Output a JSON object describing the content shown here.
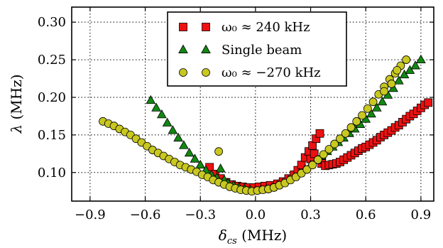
{
  "chart_data": {
    "type": "scatter",
    "xlabel": "δ_cs (MHz)",
    "ylabel": "λ (MHz)",
    "xlim": [
      -1.0,
      0.97
    ],
    "ylim": [
      0.062,
      0.32
    ],
    "x_ticks": [
      -0.9,
      -0.6,
      -0.3,
      0.0,
      0.3,
      0.6,
      0.9
    ],
    "x_tick_labels": [
      "−0.9",
      "−0.6",
      "−0.3",
      "0.0",
      "0.3",
      "0.6",
      "0.9"
    ],
    "y_ticks": [
      0.1,
      0.15,
      0.2,
      0.25,
      0.3
    ],
    "y_tick_labels": [
      "0.10",
      "0.15",
      "0.20",
      "0.25",
      "0.30"
    ],
    "grid": true,
    "legend_position": "top-center",
    "series": [
      {
        "name": "ω₀ ≈ 240 kHz",
        "marker": "square",
        "color": "#ee1111",
        "points": [
          [
            -0.25,
            0.107
          ],
          [
            -0.22,
            0.098
          ],
          [
            -0.19,
            0.092
          ],
          [
            -0.16,
            0.087
          ],
          [
            -0.13,
            0.084
          ],
          [
            -0.1,
            0.082
          ],
          [
            -0.07,
            0.081
          ],
          [
            -0.04,
            0.08
          ],
          [
            -0.01,
            0.08
          ],
          [
            0.02,
            0.081
          ],
          [
            0.05,
            0.082
          ],
          [
            0.08,
            0.083
          ],
          [
            0.12,
            0.085
          ],
          [
            0.15,
            0.088
          ],
          [
            0.18,
            0.092
          ],
          [
            0.21,
            0.097
          ],
          [
            0.23,
            0.103
          ],
          [
            0.25,
            0.11
          ],
          [
            0.27,
            0.12
          ],
          [
            0.29,
            0.128
          ],
          [
            0.31,
            0.136
          ],
          [
            0.33,
            0.145
          ],
          [
            0.35,
            0.152
          ],
          [
            0.3,
            0.118
          ],
          [
            0.32,
            0.125
          ],
          [
            0.36,
            0.112
          ],
          [
            0.38,
            0.109
          ],
          [
            0.4,
            0.11
          ],
          [
            0.42,
            0.111
          ],
          [
            0.44,
            0.112
          ],
          [
            0.46,
            0.114
          ],
          [
            0.48,
            0.117
          ],
          [
            0.5,
            0.12
          ],
          [
            0.52,
            0.123
          ],
          [
            0.54,
            0.126
          ],
          [
            0.56,
            0.129
          ],
          [
            0.58,
            0.132
          ],
          [
            0.6,
            0.134
          ],
          [
            0.62,
            0.137
          ],
          [
            0.64,
            0.14
          ],
          [
            0.66,
            0.143
          ],
          [
            0.68,
            0.147
          ],
          [
            0.7,
            0.15
          ],
          [
            0.72,
            0.153
          ],
          [
            0.74,
            0.156
          ],
          [
            0.76,
            0.16
          ],
          [
            0.78,
            0.163
          ],
          [
            0.8,
            0.167
          ],
          [
            0.82,
            0.171
          ],
          [
            0.84,
            0.175
          ],
          [
            0.86,
            0.178
          ],
          [
            0.88,
            0.182
          ],
          [
            0.9,
            0.186
          ],
          [
            0.92,
            0.19
          ],
          [
            0.94,
            0.193
          ]
        ]
      },
      {
        "name": "Single beam",
        "marker": "triangle",
        "color": "#118811",
        "points": [
          [
            -0.57,
            0.196
          ],
          [
            -0.54,
            0.186
          ],
          [
            -0.51,
            0.177
          ],
          [
            -0.48,
            0.166
          ],
          [
            -0.45,
            0.156
          ],
          [
            -0.42,
            0.146
          ],
          [
            -0.39,
            0.136
          ],
          [
            -0.36,
            0.126
          ],
          [
            -0.33,
            0.118
          ],
          [
            -0.3,
            0.11
          ],
          [
            -0.27,
            0.103
          ],
          [
            -0.24,
            0.097
          ],
          [
            -0.21,
            0.093
          ],
          [
            -0.19,
            0.105
          ],
          [
            -0.17,
            0.09
          ],
          [
            -0.15,
            0.086
          ],
          [
            -0.12,
            0.083
          ],
          [
            -0.09,
            0.08
          ],
          [
            -0.06,
            0.078
          ],
          [
            -0.03,
            0.077
          ],
          [
            0.0,
            0.076
          ],
          [
            0.03,
            0.077
          ],
          [
            0.06,
            0.078
          ],
          [
            0.09,
            0.08
          ],
          [
            0.12,
            0.083
          ],
          [
            0.15,
            0.086
          ],
          [
            0.18,
            0.09
          ],
          [
            0.21,
            0.094
          ],
          [
            0.24,
            0.099
          ],
          [
            0.27,
            0.104
          ],
          [
            0.3,
            0.11
          ],
          [
            0.33,
            0.116
          ],
          [
            0.36,
            0.122
          ],
          [
            0.39,
            0.128
          ],
          [
            0.42,
            0.134
          ],
          [
            0.45,
            0.14
          ],
          [
            0.48,
            0.146
          ],
          [
            0.51,
            0.152
          ],
          [
            0.54,
            0.158
          ],
          [
            0.57,
            0.164
          ],
          [
            0.6,
            0.171
          ],
          [
            0.63,
            0.178
          ],
          [
            0.66,
            0.186
          ],
          [
            0.69,
            0.194
          ],
          [
            0.72,
            0.203
          ],
          [
            0.75,
            0.212
          ],
          [
            0.78,
            0.222
          ],
          [
            0.81,
            0.23
          ],
          [
            0.84,
            0.236
          ],
          [
            0.87,
            0.242
          ],
          [
            0.9,
            0.25
          ]
        ]
      },
      {
        "name": "ω₀ ≈ −270 kHz",
        "marker": "circle",
        "color": "#c8c820",
        "points": [
          [
            -0.83,
            0.168
          ],
          [
            -0.8,
            0.165
          ],
          [
            -0.77,
            0.162
          ],
          [
            -0.74,
            0.158
          ],
          [
            -0.71,
            0.154
          ],
          [
            -0.68,
            0.15
          ],
          [
            -0.65,
            0.145
          ],
          [
            -0.62,
            0.14
          ],
          [
            -0.59,
            0.135
          ],
          [
            -0.56,
            0.13
          ],
          [
            -0.53,
            0.126
          ],
          [
            -0.5,
            0.122
          ],
          [
            -0.47,
            0.118
          ],
          [
            -0.44,
            0.114
          ],
          [
            -0.41,
            0.11
          ],
          [
            -0.38,
            0.107
          ],
          [
            -0.35,
            0.104
          ],
          [
            -0.32,
            0.101
          ],
          [
            -0.29,
            0.097
          ],
          [
            -0.26,
            0.094
          ],
          [
            -0.23,
            0.09
          ],
          [
            -0.2,
            0.128
          ],
          [
            -0.2,
            0.087
          ],
          [
            -0.17,
            0.084
          ],
          [
            -0.14,
            0.081
          ],
          [
            -0.11,
            0.079
          ],
          [
            -0.08,
            0.077
          ],
          [
            -0.05,
            0.076
          ],
          [
            -0.02,
            0.075
          ],
          [
            0.01,
            0.076
          ],
          [
            0.04,
            0.077
          ],
          [
            0.07,
            0.078
          ],
          [
            0.1,
            0.08
          ],
          [
            0.13,
            0.083
          ],
          [
            0.16,
            0.086
          ],
          [
            0.19,
            0.09
          ],
          [
            0.22,
            0.094
          ],
          [
            0.25,
            0.099
          ],
          [
            0.28,
            0.104
          ],
          [
            0.31,
            0.11
          ],
          [
            0.34,
            0.117
          ],
          [
            0.37,
            0.124
          ],
          [
            0.4,
            0.131
          ],
          [
            0.43,
            0.138
          ],
          [
            0.46,
            0.145
          ],
          [
            0.49,
            0.152
          ],
          [
            0.52,
            0.16
          ],
          [
            0.55,
            0.168
          ],
          [
            0.58,
            0.176
          ],
          [
            0.61,
            0.185
          ],
          [
            0.64,
            0.194
          ],
          [
            0.67,
            0.204
          ],
          [
            0.7,
            0.214
          ],
          [
            0.73,
            0.224
          ],
          [
            0.76,
            0.232
          ],
          [
            0.79,
            0.242
          ],
          [
            0.82,
            0.25
          ],
          [
            0.7,
            0.208
          ],
          [
            0.74,
            0.218
          ],
          [
            0.77,
            0.236
          ]
        ]
      }
    ]
  }
}
